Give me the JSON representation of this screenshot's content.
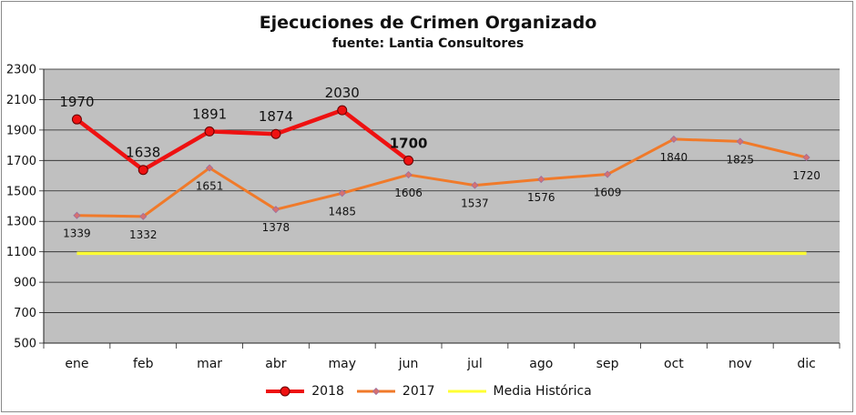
{
  "chart_data": {
    "type": "line",
    "title": "Ejecuciones  de Crimen Organizado",
    "subtitle": "fuente: Lantia Consultores",
    "categories": [
      "ene",
      "feb",
      "mar",
      "abr",
      "may",
      "jun",
      "jul",
      "ago",
      "sep",
      "oct",
      "nov",
      "dic"
    ],
    "ylim": [
      500,
      2300
    ],
    "yticks": [
      500,
      700,
      900,
      1100,
      1300,
      1500,
      1700,
      1900,
      2100,
      2300
    ],
    "grid": "horizontal",
    "legend_position": "bottom",
    "background_color": "#c0c0c0",
    "series": [
      {
        "name": "2018",
        "color": "#ee1111",
        "values": [
          1970,
          1638,
          1891,
          1874,
          2030,
          1700,
          null,
          null,
          null,
          null,
          null,
          null
        ]
      },
      {
        "name": "2017",
        "color": "#f07a2a",
        "values": [
          1339,
          1332,
          1651,
          1378,
          1485,
          1606,
          1537,
          1576,
          1609,
          1840,
          1825,
          1720
        ]
      },
      {
        "name": "Media Histórica",
        "color": "#ffff33",
        "values": [
          1090,
          1090,
          1090,
          1090,
          1090,
          1090,
          1090,
          1090,
          1090,
          1090,
          1090,
          1090
        ]
      }
    ]
  }
}
